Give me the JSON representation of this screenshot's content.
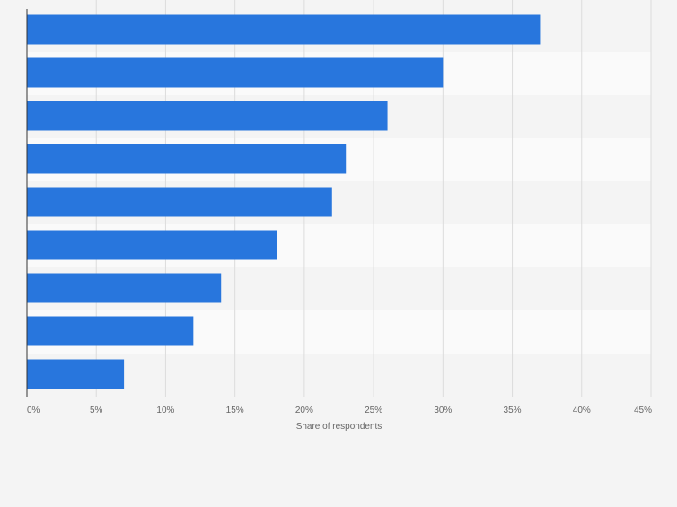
{
  "chart_data": {
    "type": "bar",
    "orientation": "horizontal",
    "categories": [
      "",
      "",
      "",
      "",
      "",
      "",
      "",
      "",
      ""
    ],
    "values": [
      37,
      30,
      26,
      23,
      22,
      18,
      14,
      12,
      7
    ],
    "value_unit": "%",
    "xlabel": "Share of respondents",
    "ylabel": "",
    "xlim": [
      0,
      45
    ],
    "x_ticks": [
      "0%",
      "5%",
      "10%",
      "15%",
      "20%",
      "25%",
      "30%",
      "35%",
      "40%",
      "45%"
    ],
    "grid": "vertical",
    "legend": "none",
    "bar_color": "#2876dd",
    "band_colors": [
      "#f4f4f4",
      "#fafafa"
    ],
    "gridline_color": "#dcdcdc",
    "axis_color": "#333333"
  }
}
